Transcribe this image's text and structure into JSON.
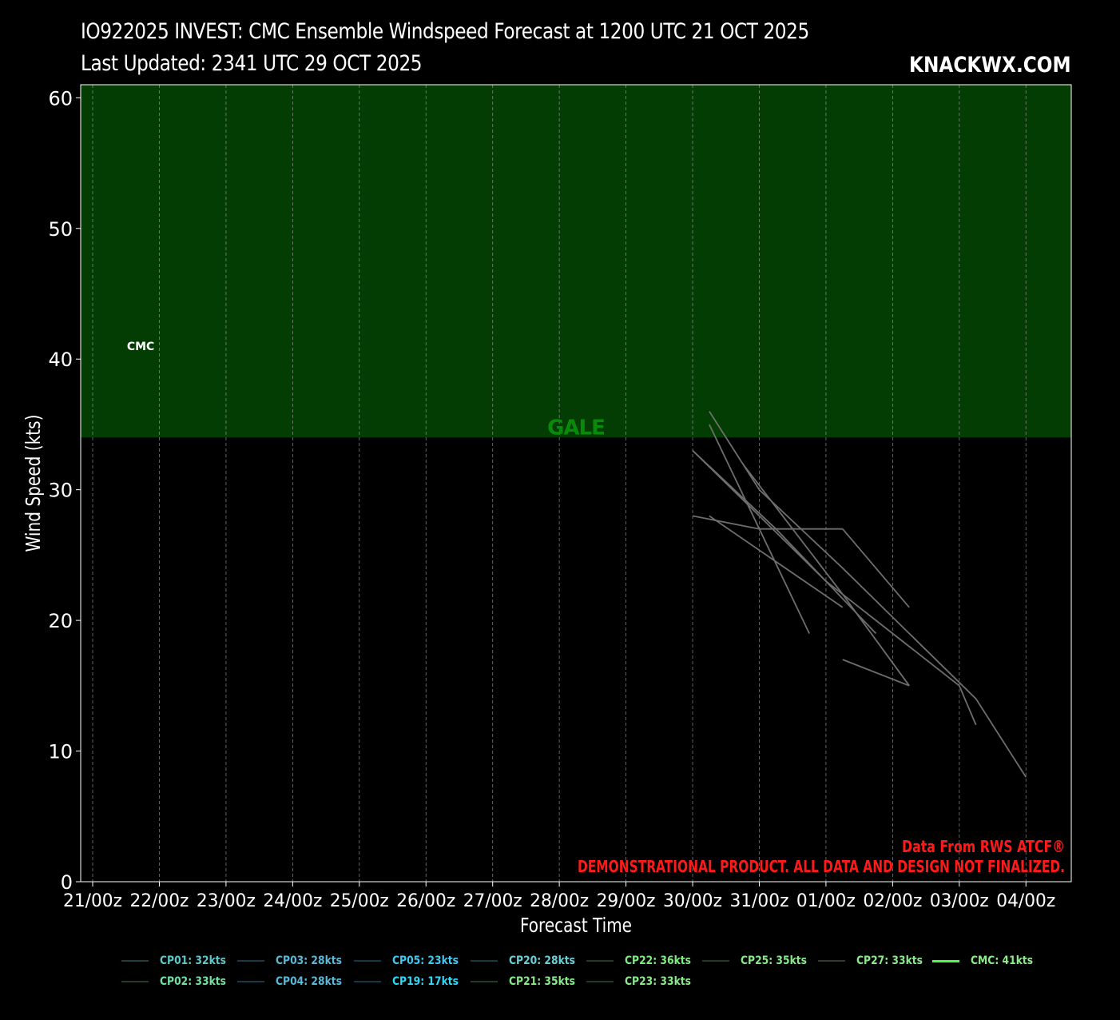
{
  "header": {
    "title_line1": "IO922025 INVEST: CMC Ensemble Windspeed Forecast at 1200 UTC 21 OCT 2025",
    "title_line2": "Last Updated: 2341 UTC 29 OCT 2025",
    "brand": "KNACKWX.COM"
  },
  "footer_notes": {
    "source": "Data From RWS ATCF®",
    "disclaimer": "DEMONSTRATIONAL PRODUCT. ALL DATA AND DESIGN NOT FINALIZED."
  },
  "chart_data": {
    "type": "line",
    "title": "IO922025 INVEST: CMC Ensemble Windspeed Forecast at 1200 UTC 21 OCT 2025",
    "xlabel": "Forecast Time",
    "ylabel": "Wind Speed (kts)",
    "x_ticks": [
      "21/00z",
      "22/00z",
      "23/00z",
      "24/00z",
      "25/00z",
      "26/00z",
      "27/00z",
      "28/00z",
      "29/00z",
      "30/00z",
      "31/00z",
      "01/00z",
      "02/00z",
      "03/00z",
      "04/00z"
    ],
    "xlim_days": [
      -0.18,
      14.68
    ],
    "ylim": [
      0,
      61
    ],
    "y_ticks": [
      0,
      10,
      20,
      30,
      40,
      50,
      60
    ],
    "grid": true,
    "bands": [
      {
        "label": "GALE",
        "from": 34,
        "to": 61,
        "color": "#033d03",
        "label_color": "#0a8a0a",
        "label_x_day": 7.25
      }
    ],
    "annotations": [
      {
        "text": "CMC",
        "x_day": 0.72,
        "y": 41
      }
    ],
    "series": [
      {
        "name": "CP01",
        "x_day": [
          9.25,
          11.25
        ],
        "y": [
          28,
          21
        ]
      },
      {
        "name": "CP02",
        "x_day": [
          9.25,
          10.0,
          11.25,
          12.25,
          13.25,
          14.0
        ],
        "y": [
          36,
          30,
          24,
          19,
          14,
          8
        ]
      },
      {
        "name": "CP03",
        "x_day": [
          9.0,
          10.0,
          11.0,
          12.0,
          13.0,
          13.25
        ],
        "y": [
          33,
          28,
          23,
          19,
          15,
          12
        ]
      },
      {
        "name": "CP04",
        "x_day": [
          9.25,
          10.0,
          10.75
        ],
        "y": [
          35,
          27,
          19
        ]
      },
      {
        "name": "CP05",
        "x_day": [
          9.0,
          10.0,
          11.25
        ],
        "y": [
          28,
          27,
          27
        ]
      },
      {
        "name": "CP19",
        "x_day": [
          9.75,
          10.5,
          11.25,
          12.25
        ],
        "y": [
          32,
          27,
          22,
          15
        ]
      },
      {
        "name": "CP20",
        "x_day": [
          11.25,
          12.25
        ],
        "y": [
          17,
          15
        ]
      },
      {
        "name": "CP21",
        "x_day": [
          9.0,
          10.25,
          11.75
        ],
        "y": [
          33,
          27,
          19
        ]
      },
      {
        "name": "CP22",
        "x_day": [
          11.25,
          12.25
        ],
        "y": [
          27,
          21
        ]
      }
    ],
    "legend": {
      "placement": "bottom-center",
      "row1": [
        {
          "label": "CP01: 32kts",
          "color": "#5ec8c8",
          "line": "#1f3f3f"
        },
        {
          "label": "CP03: 28kts",
          "color": "#5ab8d8",
          "line": "#163a48"
        },
        {
          "label": "CP05: 23kts",
          "color": "#40c8f0",
          "line": "#12384a"
        },
        {
          "label": "CP20: 28kts",
          "color": "#6ad0d8",
          "line": "#163a40"
        },
        {
          "label": "CP22: 36kts",
          "color": "#80ec80",
          "line": "#213d21"
        },
        {
          "label": "CP25: 35kts",
          "color": "#88ea88",
          "line": "#213d21"
        },
        {
          "label": "CP27: 33kts",
          "color": "#8aea8a",
          "line": "#2a3f2a"
        },
        {
          "label": "CMC: 41kts",
          "color": "#88ee88",
          "line": "#44ff44"
        }
      ],
      "row2": [
        {
          "label": "CP02: 33kts",
          "color": "#74e0a0",
          "line": "#233a2c"
        },
        {
          "label": "CP04: 28kts",
          "color": "#5ab8d8",
          "line": "#163a48"
        },
        {
          "label": "CP19: 17kts",
          "color": "#30d8f8",
          "line": "#12384a"
        },
        {
          "label": "CP21: 35kts",
          "color": "#88ea88",
          "line": "#213d21"
        },
        {
          "label": "CP23: 33kts",
          "color": "#8aea8a",
          "line": "#213d21"
        }
      ]
    },
    "colors": {
      "background": "#000000",
      "band": "#033d03",
      "ensemble_line": "#6e6e6e",
      "note_red": "#ff1a1a"
    }
  }
}
